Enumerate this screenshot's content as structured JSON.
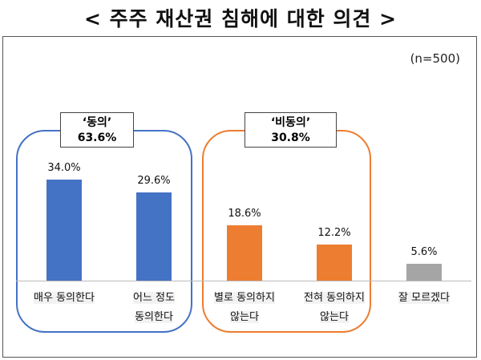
{
  "chart_data": {
    "type": "bar",
    "title": "< 주주 재산권 침해에 대한 의견 >",
    "note": "(n=500)",
    "categories": [
      "매우 동의한다",
      "어느 정도 동의한다",
      "별로 동의하지 않는다",
      "전혀 동의하지 않는다",
      "잘 모르겠다"
    ],
    "category_lines": [
      [
        "매우 동의한다"
      ],
      [
        "어느 정도",
        "동의한다"
      ],
      [
        "별로 동의하지",
        "않는다"
      ],
      [
        "전혀 동의하지",
        "않는다"
      ],
      [
        "잘 모르겠다"
      ]
    ],
    "values": [
      34.0,
      29.6,
      18.6,
      12.2,
      5.6
    ],
    "value_labels": [
      "34.0%",
      "29.6%",
      "18.6%",
      "12.2%",
      "5.6%"
    ],
    "colors": [
      "#4472c4",
      "#4472c4",
      "#ed7d31",
      "#ed7d31",
      "#a5a5a5"
    ],
    "ylim": [
      0,
      40
    ],
    "groups": [
      {
        "label": "‘동의’",
        "value": "63.6%",
        "color": "#4472c4",
        "members": [
          0,
          1
        ]
      },
      {
        "label": "‘비동의’",
        "value": "30.8%",
        "color": "#ed7d31",
        "members": [
          2,
          3
        ]
      }
    ]
  }
}
